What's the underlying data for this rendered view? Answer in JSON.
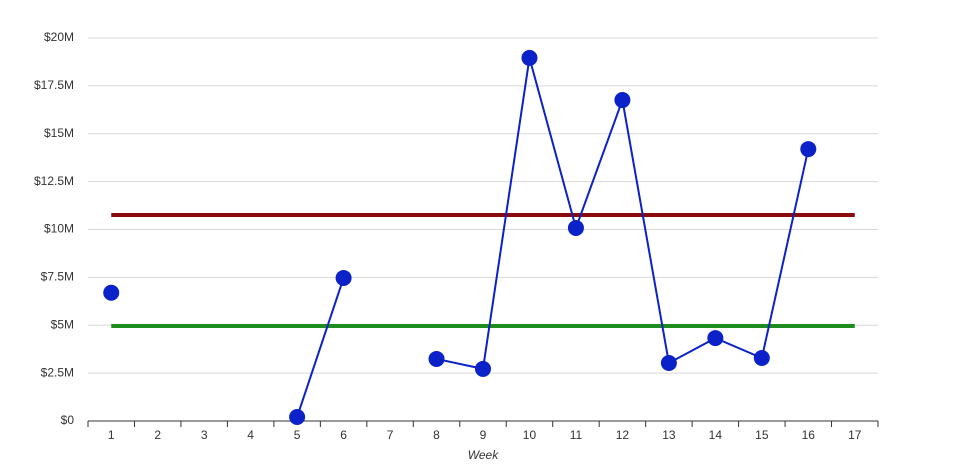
{
  "chart_data": {
    "type": "line",
    "x_label": "Week",
    "categories": [
      "1",
      "2",
      "3",
      "4",
      "5",
      "6",
      "7",
      "8",
      "9",
      "10",
      "11",
      "12",
      "13",
      "14",
      "15",
      "16",
      "17"
    ],
    "series": [
      {
        "color": "#0a22c8",
        "values": [
          6700000,
          null,
          null,
          null,
          210000,
          7470000,
          null,
          3240000,
          2720000,
          18960000,
          10080000,
          16760000,
          3030000,
          4330000,
          3290000,
          14200000,
          null
        ]
      }
    ],
    "reference_lines": [
      {
        "value": 10760000,
        "color": "#8b0a0a"
      },
      {
        "value": 4960000,
        "color": "#1e8c1e"
      }
    ],
    "ylim": [
      0,
      20000000
    ],
    "yticks": [
      {
        "value": 0,
        "label": "$0"
      },
      {
        "value": 2500000,
        "label": "$2.5M"
      },
      {
        "value": 5000000,
        "label": "$5M"
      },
      {
        "value": 7500000,
        "label": "$7.5M"
      },
      {
        "value": 10000000,
        "label": "$10M"
      },
      {
        "value": 12500000,
        "label": "$12.5M"
      },
      {
        "value": 15000000,
        "label": "$15M"
      },
      {
        "value": 17500000,
        "label": "$17.5M"
      },
      {
        "value": 20000000,
        "label": "$20M"
      }
    ],
    "grid": true
  }
}
